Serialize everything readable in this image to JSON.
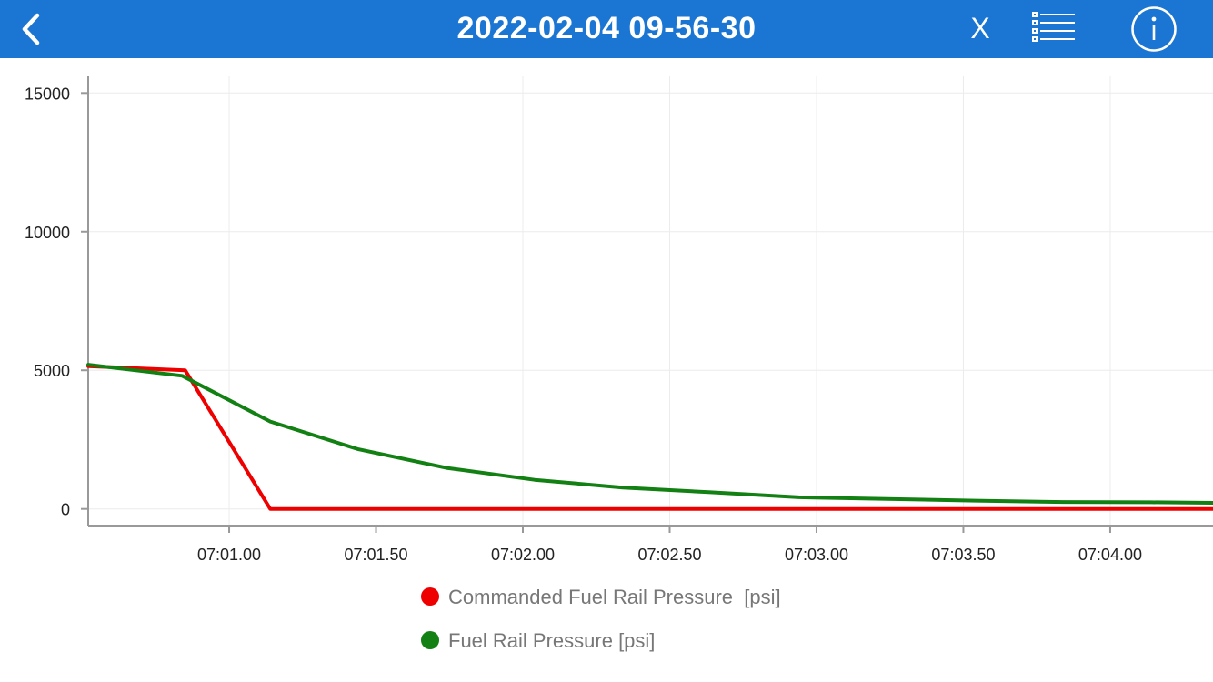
{
  "header": {
    "title": "2022-02-04 09-56-30",
    "close_label": "X",
    "back_icon": "chevron-left-icon",
    "list_icon": "list-icon",
    "info_icon": "info-icon",
    "bar_color": "#1a76d2"
  },
  "chart_data": {
    "type": "line",
    "title": "",
    "xlabel": "",
    "ylabel": "",
    "x_tick_labels": [
      "07:01.00",
      "07:01.50",
      "07:02.00",
      "07:02.50",
      "07:03.00",
      "07:03.50",
      "07:04.00"
    ],
    "x_tick_values": [
      61.0,
      61.5,
      62.0,
      62.5,
      63.0,
      63.5,
      64.0
    ],
    "xlim": [
      60.52,
      64.35
    ],
    "y_ticks": [
      0,
      5000,
      10000,
      15000
    ],
    "ylim": [
      -600,
      15600
    ],
    "grid": true,
    "legend_position": "bottom",
    "series": [
      {
        "name": "Commanded Fuel Rail Pressure  [psi]",
        "color": "#ee0000",
        "x": [
          60.52,
          60.85,
          61.14,
          61.5,
          62.0,
          62.5,
          63.0,
          63.5,
          64.0,
          64.35
        ],
        "y": [
          5150,
          5000,
          0,
          0,
          0,
          0,
          0,
          0,
          0,
          0
        ]
      },
      {
        "name": "Fuel Rail Pressure [psi]",
        "color": "#128012",
        "x": [
          60.52,
          60.84,
          61.14,
          61.44,
          61.74,
          62.04,
          62.34,
          62.64,
          62.94,
          63.24,
          63.54,
          63.84,
          64.14,
          64.35
        ],
        "y": [
          5200,
          4800,
          3150,
          2150,
          1480,
          1050,
          770,
          600,
          420,
          360,
          300,
          250,
          240,
          220
        ]
      }
    ]
  }
}
